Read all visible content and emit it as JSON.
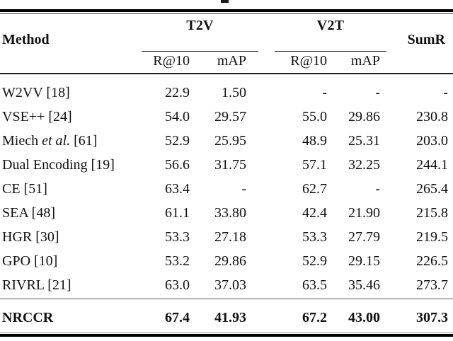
{
  "table": {
    "header": {
      "method": "Method",
      "groups": {
        "t2v": "T2V",
        "v2t": "V2T"
      },
      "subheaders": {
        "t2v_r10": "R@10",
        "t2v_map": "mAP",
        "v2t_r10": "R@10",
        "v2t_map": "mAP"
      },
      "sumr": "SumR"
    },
    "rows": [
      {
        "method": {
          "pre": "W2VV [18]"
        },
        "cells": [
          "22.9",
          "1.50",
          "-",
          "-",
          "-"
        ]
      },
      {
        "method": {
          "pre": "VSE++ [24]"
        },
        "cells": [
          "54.0",
          "29.57",
          "55.0",
          "29.86",
          "230.8"
        ]
      },
      {
        "method": {
          "pre": "Miech ",
          "it": "et al.",
          "post": " [61]"
        },
        "cells": [
          "52.9",
          "25.95",
          "48.9",
          "25.31",
          "203.0"
        ]
      },
      {
        "method": {
          "pre": "Dual Encoding [19]"
        },
        "cells": [
          "56.6",
          "31.75",
          "57.1",
          "32.25",
          "244.1"
        ]
      },
      {
        "method": {
          "pre": "CE [51]"
        },
        "cells": [
          "63.4",
          "-",
          "62.7",
          "-",
          "265.4"
        ]
      },
      {
        "method": {
          "pre": "SEA [48]"
        },
        "cells": [
          "61.1",
          "33.80",
          "42.4",
          "21.90",
          "215.8"
        ]
      },
      {
        "method": {
          "pre": "HGR [30]"
        },
        "cells": [
          "53.3",
          "27.18",
          "53.3",
          "27.79",
          "219.5"
        ]
      },
      {
        "method": {
          "pre": "GPO [10]"
        },
        "cells": [
          "53.2",
          "29.86",
          "52.9",
          "29.15",
          "226.5"
        ]
      },
      {
        "method": {
          "pre": "RIVRL [21]"
        },
        "cells": [
          "63.0",
          "37.03",
          "63.5",
          "35.46",
          "273.7"
        ]
      }
    ],
    "final_row": {
      "method": {
        "pre": "NRCCR"
      },
      "cells": [
        "67.4",
        "41.93",
        "67.2",
        "43.00",
        "307.3"
      ]
    },
    "colors": {
      "text": "#111111",
      "rule": "#000000",
      "background": "#ffffff"
    }
  }
}
